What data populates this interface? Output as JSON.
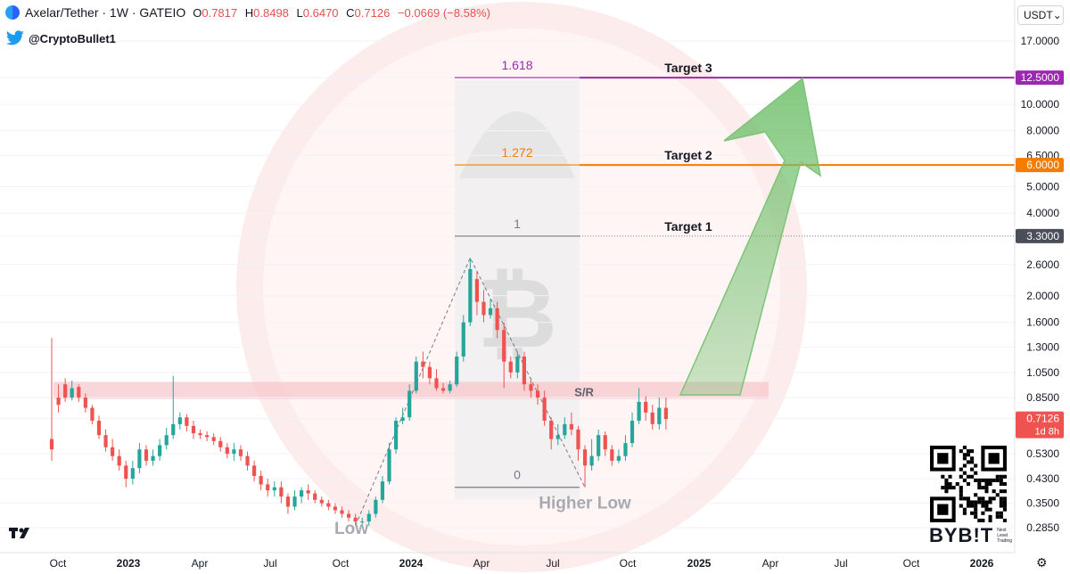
{
  "header": {
    "symbol": "Axelar/Tether · 1W · GATEIO",
    "o_label": "O",
    "o_value": "0.7817",
    "h_label": "H",
    "h_value": "0.8498",
    "l_label": "L",
    "l_value": "0.6470",
    "c_label": "C",
    "c_value": "0.7126",
    "change": "−0.0669 (−8.58%)"
  },
  "author": {
    "handle": "@CryptoBullet1",
    "icon": "twitter-bird-icon"
  },
  "currency": {
    "label": "USDT",
    "icon": "chevron-down-icon"
  },
  "settings_icon": "gear-icon",
  "branding": {
    "tv_logo": "TV",
    "exchange": "BYB!T",
    "exchange_tagline": "Next Level Trading"
  },
  "colors": {
    "up": "#26a69a",
    "down": "#ef5350",
    "fib_1618": "#9c27b0",
    "fib_1272": "#f57c00",
    "fib_1": "#787b86",
    "sr_zone": "#f7c8cc",
    "arrow": "#8fd18a",
    "watermark": "#fde7e8"
  },
  "chart_data": {
    "type": "candlestick",
    "y_scale": "log",
    "ylim": [
      0.25,
      21.0
    ],
    "x_tick_labels": [
      "Oct",
      "2023",
      "Apr",
      "Jul",
      "Oct",
      "2024",
      "Apr",
      "Jul",
      "Oct",
      "2025",
      "Apr",
      "Jul",
      "Oct",
      "2026"
    ],
    "y_tick_labels": [
      17.0,
      12.5,
      10.0,
      8.0,
      6.5,
      5.0,
      4.0,
      3.3,
      2.6,
      2.0,
      1.6,
      1.3,
      1.05,
      0.85,
      0.7126,
      0.53,
      0.43,
      0.35,
      0.285
    ],
    "price_labels": [
      {
        "value": "12.5000",
        "color": "#9c27b0"
      },
      {
        "value": "6.0000",
        "color": "#f57c00"
      },
      {
        "value": "3.3000",
        "color": "#4a4e59"
      },
      {
        "value": "0.7126",
        "sub": "1d 8h",
        "color": "#ef5350"
      }
    ],
    "fib_levels": [
      {
        "ratio": "1.618",
        "price": 12.5,
        "target": "Target 3"
      },
      {
        "ratio": "1.272",
        "price": 6.0,
        "target": "Target 2"
      },
      {
        "ratio": "1",
        "price": 3.3,
        "target": "Target 1"
      },
      {
        "ratio": "0",
        "price": 0.4
      }
    ],
    "sr_zone": {
      "label": "S/R",
      "low": 0.84,
      "high": 0.97
    },
    "annotations": [
      {
        "text": "Low",
        "price": 0.27
      },
      {
        "text": "Higher Low",
        "price": 0.335
      }
    ],
    "candles": [
      [
        0.6,
        0.55,
        1.4,
        0.5
      ],
      [
        0.85,
        0.8,
        0.95,
        0.75
      ],
      [
        0.95,
        0.85,
        1.0,
        0.82
      ],
      [
        0.85,
        0.92,
        0.98,
        0.83
      ],
      [
        0.93,
        0.85,
        0.95,
        0.82
      ],
      [
        0.85,
        0.78,
        0.88,
        0.75
      ],
      [
        0.78,
        0.7,
        0.8,
        0.68
      ],
      [
        0.7,
        0.62,
        0.73,
        0.6
      ],
      [
        0.62,
        0.56,
        0.65,
        0.54
      ],
      [
        0.56,
        0.52,
        0.6,
        0.5
      ],
      [
        0.52,
        0.48,
        0.55,
        0.46
      ],
      [
        0.48,
        0.43,
        0.5,
        0.4
      ],
      [
        0.43,
        0.47,
        0.5,
        0.41
      ],
      [
        0.47,
        0.55,
        0.58,
        0.45
      ],
      [
        0.55,
        0.5,
        0.57,
        0.48
      ],
      [
        0.5,
        0.52,
        0.55,
        0.48
      ],
      [
        0.52,
        0.57,
        0.6,
        0.5
      ],
      [
        0.57,
        0.62,
        0.66,
        0.55
      ],
      [
        0.62,
        0.68,
        1.02,
        0.6
      ],
      [
        0.68,
        0.72,
        0.75,
        0.65
      ],
      [
        0.72,
        0.67,
        0.74,
        0.64
      ],
      [
        0.67,
        0.63,
        0.7,
        0.6
      ],
      [
        0.63,
        0.62,
        0.65,
        0.6
      ],
      [
        0.62,
        0.61,
        0.64,
        0.59
      ],
      [
        0.61,
        0.59,
        0.63,
        0.57
      ],
      [
        0.59,
        0.56,
        0.61,
        0.54
      ],
      [
        0.56,
        0.53,
        0.58,
        0.51
      ],
      [
        0.53,
        0.55,
        0.58,
        0.5
      ],
      [
        0.55,
        0.52,
        0.57,
        0.5
      ],
      [
        0.52,
        0.48,
        0.54,
        0.46
      ],
      [
        0.48,
        0.44,
        0.5,
        0.42
      ],
      [
        0.44,
        0.41,
        0.46,
        0.39
      ],
      [
        0.41,
        0.39,
        0.43,
        0.37
      ],
      [
        0.39,
        0.4,
        0.42,
        0.37
      ],
      [
        0.4,
        0.37,
        0.42,
        0.35
      ],
      [
        0.37,
        0.34,
        0.38,
        0.32
      ],
      [
        0.34,
        0.37,
        0.39,
        0.33
      ],
      [
        0.37,
        0.39,
        0.4,
        0.35
      ],
      [
        0.39,
        0.38,
        0.41,
        0.36
      ],
      [
        0.38,
        0.36,
        0.39,
        0.35
      ],
      [
        0.36,
        0.35,
        0.37,
        0.34
      ],
      [
        0.35,
        0.34,
        0.36,
        0.33
      ],
      [
        0.34,
        0.33,
        0.35,
        0.32
      ],
      [
        0.33,
        0.32,
        0.34,
        0.31
      ],
      [
        0.32,
        0.31,
        0.33,
        0.3
      ],
      [
        0.31,
        0.3,
        0.32,
        0.29
      ],
      [
        0.3,
        0.3,
        0.31,
        0.29
      ],
      [
        0.3,
        0.32,
        0.33,
        0.29
      ],
      [
        0.32,
        0.36,
        0.37,
        0.31
      ],
      [
        0.36,
        0.42,
        0.44,
        0.35
      ],
      [
        0.42,
        0.55,
        0.58,
        0.41
      ],
      [
        0.55,
        0.7,
        0.72,
        0.53
      ],
      [
        0.7,
        0.72,
        0.78,
        0.68
      ],
      [
        0.72,
        0.9,
        0.95,
        0.7
      ],
      [
        0.9,
        1.15,
        1.2,
        0.88
      ],
      [
        1.15,
        1.1,
        1.25,
        1.0
      ],
      [
        1.1,
        1.0,
        1.15,
        0.95
      ],
      [
        1.0,
        0.92,
        1.08,
        0.9
      ],
      [
        0.92,
        0.9,
        0.96,
        0.88
      ],
      [
        0.9,
        0.95,
        0.98,
        0.88
      ],
      [
        0.95,
        1.2,
        1.25,
        0.93
      ],
      [
        1.2,
        1.6,
        1.7,
        1.15
      ],
      [
        1.6,
        2.5,
        2.75,
        1.55
      ],
      [
        2.3,
        1.9,
        2.45,
        1.7
      ],
      [
        1.9,
        1.7,
        2.1,
        1.6
      ],
      [
        1.7,
        1.8,
        1.95,
        1.65
      ],
      [
        1.8,
        1.5,
        1.9,
        1.4
      ],
      [
        1.5,
        1.15,
        1.6,
        0.92
      ],
      [
        1.15,
        1.05,
        1.2,
        1.0
      ],
      [
        1.05,
        1.2,
        1.25,
        1.0
      ],
      [
        1.2,
        0.95,
        1.25,
        0.9
      ],
      [
        0.95,
        0.9,
        1.0,
        0.85
      ],
      [
        0.9,
        0.85,
        0.95,
        0.8
      ],
      [
        0.85,
        0.7,
        0.9,
        0.67
      ],
      [
        0.7,
        0.6,
        0.72,
        0.55
      ],
      [
        0.6,
        0.62,
        0.68,
        0.57
      ],
      [
        0.62,
        0.68,
        0.72,
        0.6
      ],
      [
        0.68,
        0.65,
        0.75,
        0.62
      ],
      [
        0.65,
        0.55,
        0.67,
        0.5
      ],
      [
        0.55,
        0.48,
        0.57,
        0.4
      ],
      [
        0.48,
        0.52,
        0.6,
        0.46
      ],
      [
        0.52,
        0.62,
        0.65,
        0.5
      ],
      [
        0.62,
        0.55,
        0.64,
        0.52
      ],
      [
        0.55,
        0.5,
        0.57,
        0.48
      ],
      [
        0.5,
        0.52,
        0.55,
        0.49
      ],
      [
        0.52,
        0.58,
        0.62,
        0.5
      ],
      [
        0.58,
        0.7,
        0.75,
        0.56
      ],
      [
        0.7,
        0.82,
        0.92,
        0.68
      ],
      [
        0.82,
        0.75,
        0.86,
        0.7
      ],
      [
        0.75,
        0.68,
        0.8,
        0.65
      ],
      [
        0.68,
        0.78,
        0.85,
        0.65
      ],
      [
        0.78,
        0.71,
        0.85,
        0.65
      ]
    ]
  }
}
